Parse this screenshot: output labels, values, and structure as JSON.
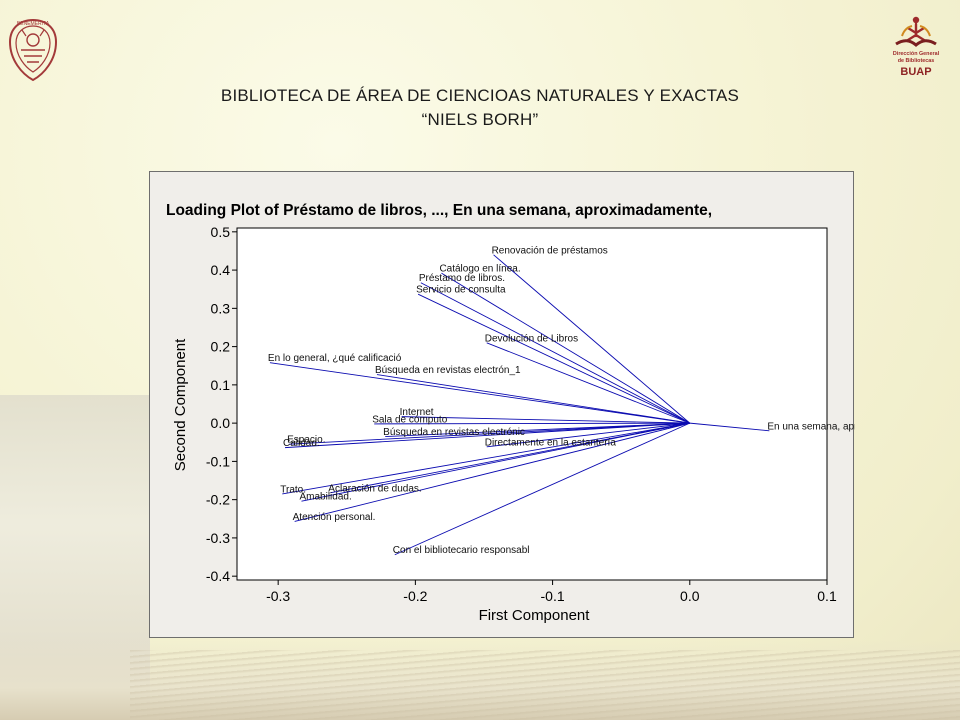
{
  "header": {
    "title_line1": "BIBLIOTECA DE ÁREA DE CIENCIOAS NATURALES Y EXACTAS",
    "title_line2": "“NIELS BORH”",
    "left_logo": {
      "icon": "buap-seal-icon",
      "text": "BENEMERITA"
    },
    "right_logo": {
      "icon": "biblioteca-logo-icon",
      "lines": [
        "Dirección General",
        "de Bibliotecas",
        "BUAP"
      ]
    }
  },
  "colors": {
    "accent": "#0b0bb0",
    "logo_red": "#9e2a2b",
    "title": "#1a1a1a"
  },
  "chart_data": {
    "type": "scatter",
    "title": "Loading Plot of Préstamo de libros, ..., En una semana, aproximadamente,",
    "xlabel": "First Component",
    "ylabel": "Second Component",
    "xlim": [
      -0.33,
      0.1
    ],
    "ylim": [
      -0.41,
      0.51
    ],
    "x_ticks": [
      "-0.3",
      "-0.2",
      "-0.1",
      "0.0",
      "0.1"
    ],
    "x_tick_values": [
      -0.3,
      -0.2,
      -0.1,
      0.0,
      0.1
    ],
    "y_ticks": [
      "0.5",
      "0.4",
      "0.3",
      "0.2",
      "0.1",
      "0.0",
      "-0.1",
      "-0.2",
      "-0.3",
      "-0.4"
    ],
    "y_tick_values": [
      0.5,
      0.4,
      0.3,
      0.2,
      0.1,
      0.0,
      -0.1,
      -0.2,
      -0.3,
      -0.4
    ],
    "origin": [
      0,
      0
    ],
    "points": [
      {
        "label": "Renovación de préstamos",
        "x": -0.143,
        "y": 0.44
      },
      {
        "label": "Catálogo en línea.",
        "x": -0.181,
        "y": 0.392
      },
      {
        "label": "Préstamo de libros.",
        "x": -0.196,
        "y": 0.367
      },
      {
        "label": "Servicio de consulta",
        "x": -0.198,
        "y": 0.337
      },
      {
        "label": "Devolución de Libros",
        "x": -0.148,
        "y": 0.21
      },
      {
        "label": "En lo general, ¿qué calificació",
        "x": -0.306,
        "y": 0.158
      },
      {
        "label": "Búsqueda en revistas electrón_1",
        "x": -0.228,
        "y": 0.127
      },
      {
        "label": "Internet",
        "x": -0.21,
        "y": 0.017
      },
      {
        "label": "Sala de cómputo",
        "x": -0.23,
        "y": -0.002
      },
      {
        "label": "Búsqueda en revistas electrónic",
        "x": -0.222,
        "y": -0.035
      },
      {
        "label": "Espacio.",
        "x": -0.292,
        "y": -0.055
      },
      {
        "label": "Calidad.",
        "x": -0.295,
        "y": -0.064
      },
      {
        "label": "Directamente en la estantería",
        "x": -0.148,
        "y": -0.062
      },
      {
        "label": "Trato.",
        "x": -0.297,
        "y": -0.185
      },
      {
        "label": "Aclaración de dudas.",
        "x": -0.262,
        "y": -0.182
      },
      {
        "label": "Amabilidad.",
        "x": -0.283,
        "y": -0.204
      },
      {
        "label": "Atención personal.",
        "x": -0.288,
        "y": -0.257
      },
      {
        "label": "Con el bibliotecario responsabl",
        "x": -0.215,
        "y": -0.344
      },
      {
        "label": "En una semana, aproximadamente,",
        "x": 0.058,
        "y": -0.02
      }
    ]
  }
}
